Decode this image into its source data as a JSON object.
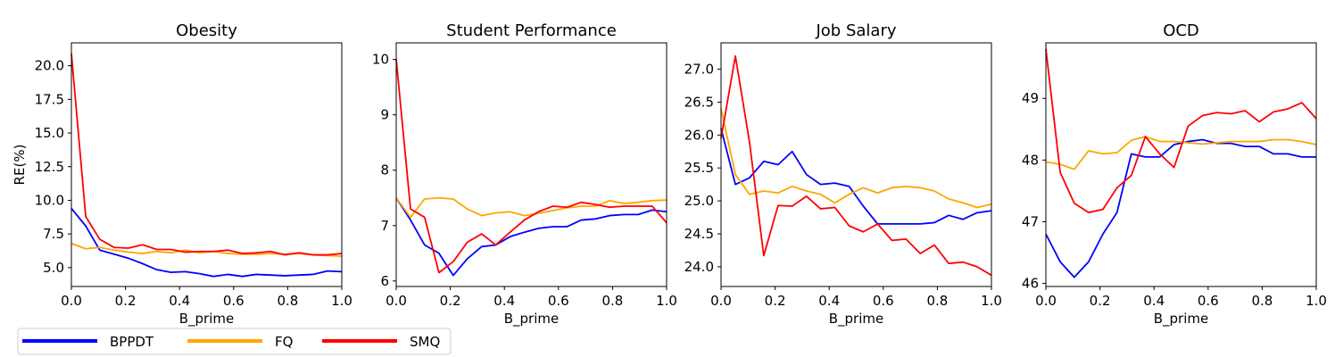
{
  "legend": {
    "placement": "bottom-left",
    "entries": [
      {
        "label": "BPPDT",
        "color": "#0000ff"
      },
      {
        "label": "FQ",
        "color": "#ffa500"
      },
      {
        "label": "SMQ",
        "color": "#ff0000"
      }
    ]
  },
  "chart_data": [
    {
      "type": "line",
      "title": "Obesity",
      "xlabel": "B_prime",
      "ylabel": "RE(%)",
      "xlim": [
        0,
        1
      ],
      "ylim": [
        3.6,
        21.7
      ],
      "xticks": [
        0.0,
        0.2,
        0.4,
        0.6,
        0.8,
        1.0
      ],
      "xtick_labels": [
        "0.0",
        "0.2",
        "0.4",
        "0.6",
        "0.8",
        "1.0"
      ],
      "yticks": [
        5.0,
        7.5,
        10.0,
        12.5,
        15.0,
        17.5,
        20.0
      ],
      "ytick_labels": [
        "5.0",
        "7.5",
        "10.0",
        "12.5",
        "15.0",
        "17.5",
        "20.0"
      ],
      "x": [
        0.0,
        0.053,
        0.105,
        0.158,
        0.211,
        0.263,
        0.316,
        0.368,
        0.421,
        0.474,
        0.526,
        0.579,
        0.632,
        0.684,
        0.737,
        0.789,
        0.842,
        0.895,
        0.947,
        1.0
      ],
      "series": [
        {
          "name": "BPPDT",
          "color": "#0000ff",
          "values": [
            9.4,
            8.1,
            6.3,
            6.0,
            5.7,
            5.3,
            4.85,
            4.65,
            4.7,
            4.55,
            4.35,
            4.5,
            4.35,
            4.5,
            4.45,
            4.4,
            4.45,
            4.5,
            4.75,
            4.7
          ]
        },
        {
          "name": "FQ",
          "color": "#ffa500",
          "values": [
            6.8,
            6.4,
            6.5,
            6.3,
            6.15,
            6.05,
            6.2,
            6.1,
            6.3,
            6.1,
            6.2,
            6.05,
            6.0,
            6.0,
            6.05,
            6.0,
            6.05,
            5.95,
            5.9,
            5.85
          ]
        },
        {
          "name": "SMQ",
          "color": "#ff0000",
          "values": [
            20.9,
            8.8,
            7.1,
            6.5,
            6.45,
            6.7,
            6.35,
            6.35,
            6.15,
            6.2,
            6.2,
            6.3,
            6.05,
            6.1,
            6.2,
            5.95,
            6.1,
            5.95,
            5.95,
            6.05
          ]
        }
      ]
    },
    {
      "type": "line",
      "title": "Student Performance",
      "xlabel": "B_prime",
      "ylabel": "",
      "xlim": [
        0,
        1
      ],
      "ylim": [
        5.9,
        10.3
      ],
      "xticks": [
        0.0,
        0.2,
        0.4,
        0.6,
        0.8,
        1.0
      ],
      "xtick_labels": [
        "0.0",
        "0.2",
        "0.4",
        "0.6",
        "0.8",
        "1.0"
      ],
      "yticks": [
        6,
        7,
        8,
        9,
        10
      ],
      "ytick_labels": [
        "6",
        "7",
        "8",
        "9",
        "10"
      ],
      "x": [
        0.0,
        0.053,
        0.105,
        0.158,
        0.211,
        0.263,
        0.316,
        0.368,
        0.421,
        0.474,
        0.526,
        0.579,
        0.632,
        0.684,
        0.737,
        0.789,
        0.842,
        0.895,
        0.947,
        1.0
      ],
      "series": [
        {
          "name": "BPPDT",
          "color": "#0000ff",
          "values": [
            7.5,
            7.1,
            6.65,
            6.5,
            6.1,
            6.4,
            6.62,
            6.65,
            6.8,
            6.88,
            6.95,
            6.98,
            6.98,
            7.1,
            7.12,
            7.18,
            7.2,
            7.2,
            7.28,
            7.25
          ]
        },
        {
          "name": "FQ",
          "color": "#ffa500",
          "values": [
            7.5,
            7.15,
            7.48,
            7.5,
            7.48,
            7.3,
            7.18,
            7.23,
            7.25,
            7.18,
            7.22,
            7.27,
            7.32,
            7.35,
            7.35,
            7.45,
            7.4,
            7.42,
            7.45,
            7.46
          ]
        },
        {
          "name": "SMQ",
          "color": "#ff0000",
          "values": [
            10.0,
            7.3,
            7.15,
            6.15,
            6.35,
            6.7,
            6.85,
            6.65,
            6.88,
            7.1,
            7.25,
            7.35,
            7.33,
            7.42,
            7.38,
            7.33,
            7.35,
            7.35,
            7.35,
            7.05
          ]
        }
      ]
    },
    {
      "type": "line",
      "title": "Job Salary",
      "xlabel": "B_prime",
      "ylabel": "",
      "xlim": [
        0,
        1
      ],
      "ylim": [
        23.7,
        27.4
      ],
      "xticks": [
        0.0,
        0.2,
        0.4,
        0.6,
        0.8,
        1.0
      ],
      "xtick_labels": [
        "0.0",
        "0.2",
        "0.4",
        "0.6",
        "0.8",
        "1.0"
      ],
      "yticks": [
        24.0,
        24.5,
        25.0,
        25.5,
        26.0,
        26.5,
        27.0
      ],
      "ytick_labels": [
        "24.0",
        "24.5",
        "25.0",
        "25.5",
        "26.0",
        "26.5",
        "27.0"
      ],
      "x": [
        0.0,
        0.053,
        0.105,
        0.158,
        0.211,
        0.263,
        0.316,
        0.368,
        0.421,
        0.474,
        0.526,
        0.579,
        0.632,
        0.684,
        0.737,
        0.789,
        0.842,
        0.895,
        0.947,
        1.0
      ],
      "series": [
        {
          "name": "BPPDT",
          "color": "#0000ff",
          "values": [
            26.1,
            25.25,
            25.35,
            25.6,
            25.55,
            25.75,
            25.4,
            25.25,
            25.27,
            25.22,
            24.92,
            24.65,
            24.65,
            24.65,
            24.65,
            24.67,
            24.78,
            24.72,
            24.82,
            24.85
          ]
        },
        {
          "name": "FQ",
          "color": "#ffa500",
          "values": [
            26.4,
            25.4,
            25.1,
            25.15,
            25.12,
            25.22,
            25.15,
            25.1,
            24.97,
            25.1,
            25.2,
            25.12,
            25.2,
            25.22,
            25.2,
            25.15,
            25.03,
            24.97,
            24.9,
            24.95
          ]
        },
        {
          "name": "SMQ",
          "color": "#ff0000",
          "values": [
            25.95,
            27.2,
            25.9,
            24.17,
            24.93,
            24.92,
            25.07,
            24.88,
            24.9,
            24.62,
            24.53,
            24.65,
            24.4,
            24.42,
            24.2,
            24.33,
            24.05,
            24.07,
            24.0,
            23.87
          ]
        }
      ]
    },
    {
      "type": "line",
      "title": "OCD",
      "xlabel": "B_prime",
      "ylabel": "",
      "xlim": [
        0,
        1
      ],
      "ylim": [
        45.95,
        49.9
      ],
      "xticks": [
        0.0,
        0.2,
        0.4,
        0.6,
        0.8,
        1.0
      ],
      "xtick_labels": [
        "0.0",
        "0.2",
        "0.4",
        "0.6",
        "0.8",
        "1.0"
      ],
      "yticks": [
        46,
        47,
        48,
        49
      ],
      "ytick_labels": [
        "46",
        "47",
        "48",
        "49"
      ],
      "x": [
        0.0,
        0.053,
        0.105,
        0.158,
        0.211,
        0.263,
        0.316,
        0.368,
        0.421,
        0.474,
        0.526,
        0.579,
        0.632,
        0.684,
        0.737,
        0.789,
        0.842,
        0.895,
        0.947,
        1.0
      ],
      "series": [
        {
          "name": "BPPDT",
          "color": "#0000ff",
          "values": [
            46.8,
            46.35,
            46.1,
            46.35,
            46.8,
            47.15,
            48.1,
            48.05,
            48.05,
            48.25,
            48.3,
            48.33,
            48.27,
            48.27,
            48.22,
            48.22,
            48.1,
            48.1,
            48.05,
            48.05
          ]
        },
        {
          "name": "FQ",
          "color": "#ffa500",
          "values": [
            47.97,
            47.93,
            47.85,
            48.15,
            48.1,
            48.12,
            48.32,
            48.38,
            48.3,
            48.3,
            48.28,
            48.26,
            48.28,
            48.3,
            48.3,
            48.3,
            48.33,
            48.33,
            48.3,
            48.25
          ]
        },
        {
          "name": "SMQ",
          "color": "#ff0000",
          "values": [
            49.8,
            47.8,
            47.3,
            47.15,
            47.2,
            47.55,
            47.75,
            48.38,
            48.1,
            47.88,
            48.55,
            48.72,
            48.77,
            48.75,
            48.8,
            48.62,
            48.78,
            48.83,
            48.93,
            48.67
          ]
        }
      ]
    }
  ]
}
